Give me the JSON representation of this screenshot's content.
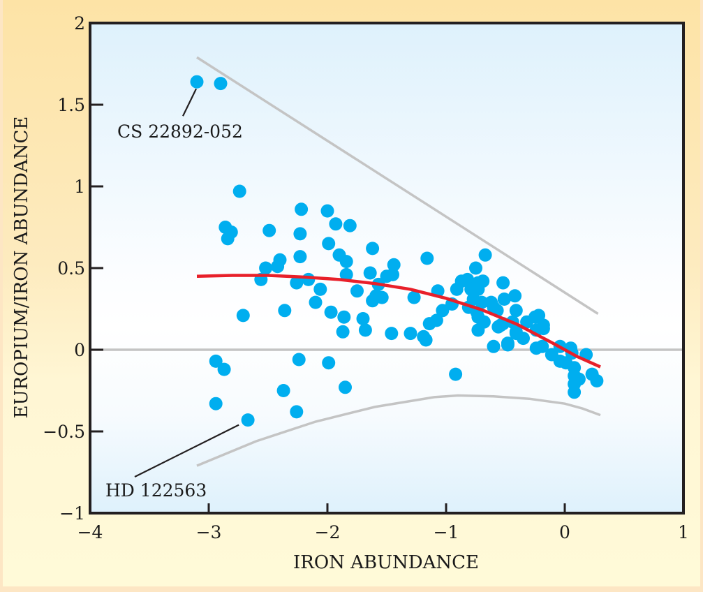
{
  "chart_data": {
    "type": "scatter",
    "title": "",
    "xlabel": "IRON ABUNDANCE",
    "ylabel": "EUROPIUM/IRON ABUNDANCE",
    "xlim": [
      -4,
      1
    ],
    "ylim": [
      -1,
      2
    ],
    "x_ticks": [
      -4,
      -3,
      -2,
      -1,
      0,
      1
    ],
    "x_tick_labels": [
      "−4",
      "−3",
      "−2",
      "−1",
      "0",
      "1"
    ],
    "y_ticks": [
      -1,
      -0.5,
      0,
      0.5,
      1,
      1.5,
      2
    ],
    "y_tick_labels": [
      "−1",
      "−0.5",
      "0",
      "0.5",
      "1",
      "1.5",
      "2"
    ],
    "grid": false,
    "legend": null,
    "colors": {
      "points": "#00aeef",
      "trend": "#e8202a",
      "envelope": "#c4c4c4",
      "zero_line": "#c4c4c4",
      "axis": "#231f20"
    },
    "series": [
      {
        "name": "stars",
        "kind": "points",
        "points": [
          [
            -3.1,
            1.64
          ],
          [
            -2.9,
            1.63
          ],
          [
            -2.74,
            0.97
          ],
          [
            -2.86,
            0.75
          ],
          [
            -2.81,
            0.72
          ],
          [
            -2.84,
            0.68
          ],
          [
            -2.49,
            0.73
          ],
          [
            -2.22,
            0.86
          ],
          [
            -2.23,
            0.71
          ],
          [
            -2.23,
            0.57
          ],
          [
            -2.0,
            0.85
          ],
          [
            -1.93,
            0.77
          ],
          [
            -1.81,
            0.76
          ],
          [
            -1.99,
            0.65
          ],
          [
            -1.9,
            0.58
          ],
          [
            -1.84,
            0.54
          ],
          [
            -1.62,
            0.62
          ],
          [
            -2.4,
            0.55
          ],
          [
            -2.42,
            0.51
          ],
          [
            -2.52,
            0.5
          ],
          [
            -2.56,
            0.43
          ],
          [
            -2.16,
            0.43
          ],
          [
            -2.26,
            0.41
          ],
          [
            -2.06,
            0.37
          ],
          [
            -2.1,
            0.29
          ],
          [
            -1.84,
            0.46
          ],
          [
            -1.64,
            0.47
          ],
          [
            -1.75,
            0.36
          ],
          [
            -1.44,
            0.52
          ],
          [
            -1.45,
            0.46
          ],
          [
            -1.5,
            0.45
          ],
          [
            -1.57,
            0.4
          ],
          [
            -1.54,
            0.32
          ],
          [
            -1.62,
            0.3
          ],
          [
            -1.59,
            0.33
          ],
          [
            -1.16,
            0.56
          ],
          [
            -2.71,
            0.21
          ],
          [
            -2.36,
            0.24
          ],
          [
            -1.97,
            0.23
          ],
          [
            -1.86,
            0.2
          ],
          [
            -1.7,
            0.19
          ],
          [
            -1.87,
            0.11
          ],
          [
            -1.68,
            0.12
          ],
          [
            -1.46,
            0.1
          ],
          [
            -1.3,
            0.1
          ],
          [
            -1.19,
            0.08
          ],
          [
            -1.17,
            0.06
          ],
          [
            -1.27,
            0.32
          ],
          [
            -1.07,
            0.36
          ],
          [
            -0.91,
            0.37
          ],
          [
            -1.08,
            0.18
          ],
          [
            -1.14,
            0.16
          ],
          [
            -1.03,
            0.24
          ],
          [
            -0.95,
            0.28
          ],
          [
            -0.87,
            0.42
          ],
          [
            -0.82,
            0.43
          ],
          [
            -0.75,
            0.5
          ],
          [
            -0.67,
            0.58
          ],
          [
            -0.73,
            0.41
          ],
          [
            -0.79,
            0.37
          ],
          [
            -0.73,
            0.37
          ],
          [
            -0.69,
            0.42
          ],
          [
            -0.81,
            0.26
          ],
          [
            -0.77,
            0.31
          ],
          [
            -0.74,
            0.23
          ],
          [
            -0.7,
            0.29
          ],
          [
            -0.62,
            0.29
          ],
          [
            -0.57,
            0.24
          ],
          [
            -0.6,
            0.26
          ],
          [
            -0.73,
            0.2
          ],
          [
            -0.68,
            0.17
          ],
          [
            -0.73,
            0.12
          ],
          [
            -0.56,
            0.14
          ],
          [
            -0.52,
            0.16
          ],
          [
            -0.6,
            0.02
          ],
          [
            -0.48,
            0.04
          ],
          [
            -0.54,
            0.15
          ],
          [
            -0.52,
            0.41
          ],
          [
            -0.42,
            0.33
          ],
          [
            -0.51,
            0.31
          ],
          [
            -0.41,
            0.24
          ],
          [
            -0.41,
            0.1
          ],
          [
            -0.44,
            0.17
          ],
          [
            -0.32,
            0.17
          ],
          [
            -0.25,
            0.2
          ],
          [
            -0.22,
            0.21
          ],
          [
            -0.18,
            0.15
          ],
          [
            -0.41,
            0.11
          ],
          [
            -0.35,
            0.07
          ],
          [
            -0.24,
            0.12
          ],
          [
            -0.18,
            0.13
          ],
          [
            -0.48,
            0.03
          ],
          [
            -0.24,
            0.01
          ],
          [
            -0.19,
            0.02
          ],
          [
            -0.11,
            -0.03
          ],
          [
            -0.04,
            0.02
          ],
          [
            0.05,
            0.01
          ],
          [
            0.06,
            -0.02
          ],
          [
            0.18,
            -0.03
          ],
          [
            -0.04,
            -0.07
          ],
          [
            0.01,
            -0.08
          ],
          [
            0.08,
            -0.11
          ],
          [
            0.08,
            -0.16
          ],
          [
            0.12,
            -0.18
          ],
          [
            0.08,
            -0.21
          ],
          [
            0.23,
            -0.15
          ],
          [
            0.27,
            -0.19
          ],
          [
            0.08,
            -0.26
          ],
          [
            -0.92,
            -0.15
          ],
          [
            -2.94,
            -0.07
          ],
          [
            -2.87,
            -0.12
          ],
          [
            -2.24,
            -0.06
          ],
          [
            -1.99,
            -0.08
          ],
          [
            -1.85,
            -0.23
          ],
          [
            -2.94,
            -0.33
          ],
          [
            -2.37,
            -0.25
          ],
          [
            -2.26,
            -0.38
          ],
          [
            -2.67,
            -0.43
          ]
        ]
      },
      {
        "name": "trend",
        "kind": "line",
        "points": [
          [
            -3.1,
            0.45
          ],
          [
            -2.8,
            0.455
          ],
          [
            -2.5,
            0.455
          ],
          [
            -2.2,
            0.445
          ],
          [
            -1.9,
            0.43
          ],
          [
            -1.6,
            0.405
          ],
          [
            -1.3,
            0.37
          ],
          [
            -1.0,
            0.315
          ],
          [
            -0.7,
            0.245
          ],
          [
            -0.4,
            0.155
          ],
          [
            -0.1,
            0.04
          ],
          [
            0.1,
            -0.04
          ],
          [
            0.3,
            -0.105
          ]
        ]
      },
      {
        "name": "upper-envelope",
        "kind": "line",
        "points": [
          [
            -3.1,
            1.79
          ],
          [
            0.28,
            0.22
          ]
        ]
      },
      {
        "name": "lower-envelope",
        "kind": "line",
        "points": [
          [
            -3.1,
            -0.71
          ],
          [
            -2.6,
            -0.56
          ],
          [
            -2.1,
            -0.44
          ],
          [
            -1.6,
            -0.35
          ],
          [
            -1.1,
            -0.29
          ],
          [
            -0.9,
            -0.28
          ],
          [
            -0.6,
            -0.285
          ],
          [
            -0.3,
            -0.3
          ],
          [
            0.0,
            -0.33
          ],
          [
            0.15,
            -0.36
          ],
          [
            0.3,
            -0.4
          ]
        ]
      },
      {
        "name": "zero-line",
        "kind": "hline",
        "y": 0
      }
    ],
    "annotations": [
      {
        "text": "CS 22892-052",
        "target": [
          -3.1,
          1.64
        ]
      },
      {
        "text": "HD 122563",
        "target": [
          -2.67,
          -0.43
        ]
      }
    ]
  }
}
